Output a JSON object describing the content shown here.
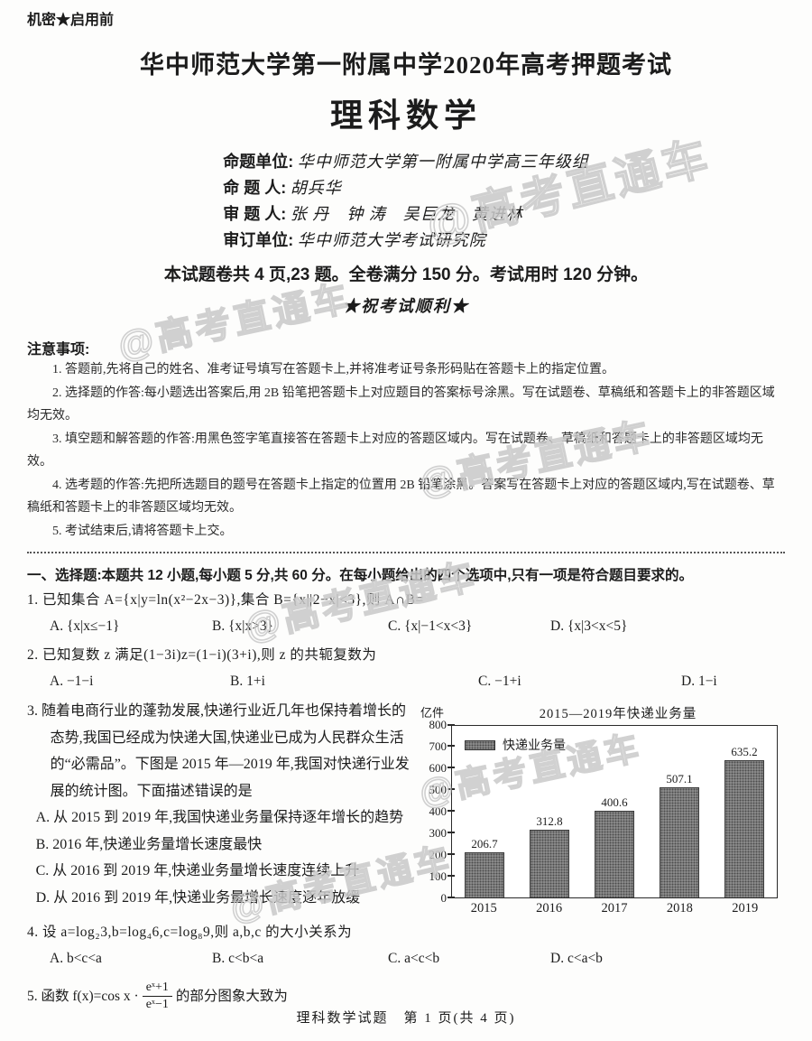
{
  "watermark": {
    "text": "@高考直通车"
  },
  "header": {
    "secret": "机密★启用前",
    "exam_title": "华中师范大学第一附属中学2020年高考押题考试",
    "subject_title": "理科数学",
    "info_lines": [
      {
        "label": "命题单位:",
        "value": "华中师范大学第一附属中学高三年级组"
      },
      {
        "label": "命 题 人:",
        "value": "胡兵华"
      },
      {
        "label": "审 题 人:",
        "value": "张 丹　钟 涛　吴巨龙　黄进林"
      },
      {
        "label": "审订单位:",
        "value": "华中师范大学考试研究院"
      }
    ],
    "summary": "本试题卷共 4 页,23 题。全卷满分 150 分。考试用时 120 分钟。",
    "wish": "★祝考试顺利★"
  },
  "notices": {
    "heading": "注意事项:",
    "items": [
      "1. 答题前,先将自己的姓名、准考证号填写在答题卡上,并将准考证号条形码贴在答题卡上的指定位置。",
      "2. 选择题的作答:每小题选出答案后,用 2B 铅笔把答题卡上对应题目的答案标号涂黑。写在试题卷、草稿纸和答题卡上的非答题区域均无效。",
      "3. 填空题和解答题的作答:用黑色签字笔直接答在答题卡上对应的答题区域内。写在试题卷、草稿纸和答题卡上的非答题区域均无效。",
      "4. 选考题的作答:先把所选题目的题号在答题卡上指定的位置用 2B 铅笔涂黑。答案写在答题卡上对应的答题区域内,写在试题卷、草稿纸和答题卡上的非答题区域均无效。",
      "5. 考试结束后,请将答题卡上交。"
    ]
  },
  "section": {
    "heading": "一、选择题:本题共 12 小题,每小题 5 分,共 60 分。在每小题给出的四个选项中,只有一项是符合题目要求的。"
  },
  "questions": {
    "q1": {
      "stem": "1. 已知集合 A={x|y=ln(x²−2x−3)},集合 B={x||2−x|<3},则 A∩B=",
      "options": [
        "A. {x|x≤−1}",
        "B. {x|x>3}",
        "C. {x|−1<x<3}",
        "D. {x|3<x<5}"
      ]
    },
    "q2": {
      "stem": "2. 已知复数 z 满足(1−3i)z=(1−i)(3+i),则 z 的共轭复数为",
      "options": [
        "A. −1−i",
        "B. 1+i",
        "C. −1+i",
        "D. 1−i"
      ]
    },
    "q3": {
      "stem": "3. 随着电商行业的蓬勃发展,快递行业近几年也保持着增长的态势,我国已经成为快递大国,快递业已成为人民群众生活的“必需品”。下图是 2015 年—2019 年,我国对快递行业发展的统计图。下面描述错误的是",
      "options": [
        "A. 从 2015 到 2019 年,我国快递业务量保持逐年增长的趋势",
        "B. 2016 年,快递业务量增长速度最快",
        "C. 从 2016 到 2019 年,快递业务量增长速度连续上升",
        "D. 从 2016 到 2019 年,快递业务量增长速度逐年放缓"
      ]
    },
    "q4": {
      "stem": "4. 设 a=log₂3,b=log₄6,c=log₈9,则 a,b,c 的大小关系为",
      "options": [
        "A. b<c<a",
        "B. c<b<a",
        "C. a<c<b",
        "D. c<a<b"
      ]
    },
    "q5": {
      "stem_prefix": "5. 函数 f(x)=cos x ·",
      "frac_num": "eˣ+1",
      "frac_den": "eˣ−1",
      "stem_suffix": "的部分图象大致为"
    }
  },
  "chart_data": {
    "type": "bar",
    "title": "2015—2019年快递业务量",
    "unit_label": "亿件",
    "legend": [
      "快递业务量"
    ],
    "categories": [
      "2015",
      "2016",
      "2017",
      "2018",
      "2019"
    ],
    "values": [
      206.7,
      312.8,
      400.6,
      507.1,
      635.2
    ],
    "ylabel": "亿件",
    "xlabel": "",
    "ylim": [
      0,
      800
    ],
    "yticks": [
      0,
      100,
      200,
      300,
      400,
      500,
      600,
      700,
      800
    ],
    "bar_color": "#8f8f8f",
    "bar_dot_color": "#4c4c4c",
    "grid": false,
    "legend_position": "top-left"
  },
  "footer": {
    "page_label": "理科数学试题　第 1 页(共 4 页)"
  }
}
